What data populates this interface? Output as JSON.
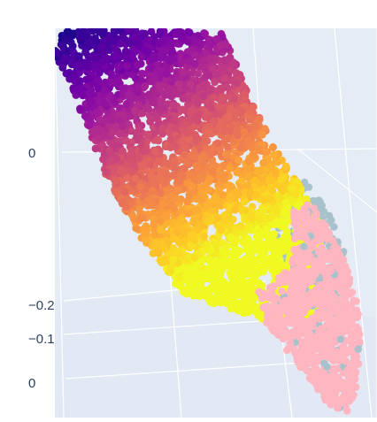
{
  "chart_data": {
    "type": "scatter",
    "title": "",
    "tick_labels": {
      "z_axis": [
        "0",
        "−0.2",
        "−0.1",
        "0"
      ]
    },
    "colorscale": "plasma",
    "colors": {
      "scene_background": "#e5ecf6",
      "grid": "#ffffff",
      "secondary_cloud": "#ffb6c1",
      "secondary_cloud_shadow": "#a8c2cc",
      "plasma": [
        "#0d0887",
        "#46039f",
        "#7201a8",
        "#9c179e",
        "#bd3786",
        "#d8576b",
        "#ed7953",
        "#fb9f3a",
        "#fdca26",
        "#f0f921"
      ]
    }
  }
}
